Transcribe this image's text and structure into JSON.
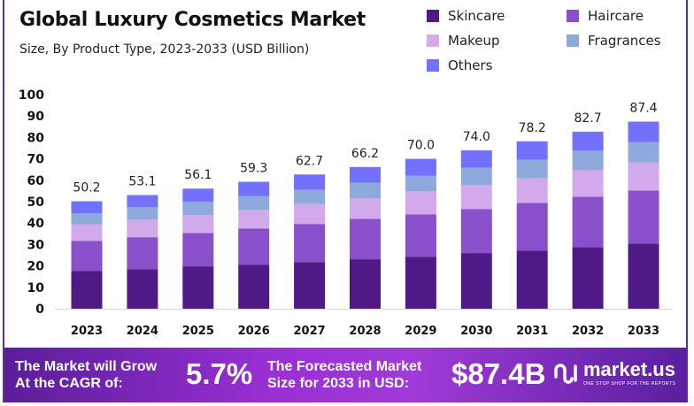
{
  "chart_data": {
    "type": "bar",
    "stacked": true,
    "title": "Global Luxury Cosmetics Market",
    "subtitle": "Size, By Product Type, 2023-2033 (USD Billion)",
    "categories": [
      "2023",
      "2024",
      "2025",
      "2026",
      "2027",
      "2028",
      "2029",
      "2030",
      "2031",
      "2032",
      "2033"
    ],
    "totals": [
      "50.2",
      "53.1",
      "56.1",
      "59.3",
      "62.7",
      "66.2",
      "70.0",
      "74.0",
      "78.2",
      "82.7",
      "87.4"
    ],
    "series": [
      {
        "name": "Skincare",
        "color": "#4f1a86",
        "values": [
          17.7,
          18.5,
          19.8,
          20.6,
          21.8,
          23.1,
          24.3,
          26.0,
          27.2,
          28.8,
          30.5
        ]
      },
      {
        "name": "Haircare",
        "color": "#8a50cc",
        "values": [
          14.0,
          14.9,
          15.6,
          16.9,
          17.8,
          18.9,
          19.8,
          20.6,
          22.2,
          23.5,
          24.7
        ]
      },
      {
        "name": "Makeup",
        "color": "#d2a9ea",
        "values": [
          7.6,
          8.2,
          8.3,
          8.6,
          9.4,
          9.5,
          10.7,
          11.1,
          11.6,
          12.4,
          13.2
        ]
      },
      {
        "name": "Fragrances",
        "color": "#8ea9dc",
        "values": [
          5.2,
          5.8,
          6.2,
          6.6,
          6.6,
          7.4,
          7.4,
          8.2,
          8.6,
          9.1,
          9.5
        ]
      },
      {
        "name": "Others",
        "color": "#7370fb",
        "values": [
          5.7,
          5.7,
          6.2,
          6.6,
          7.1,
          7.3,
          7.8,
          8.1,
          8.6,
          8.9,
          9.5
        ]
      }
    ],
    "ylim": [
      0,
      100
    ],
    "yticks": [
      "0",
      "10",
      "20",
      "30",
      "40",
      "50",
      "60",
      "70",
      "80",
      "90",
      "100"
    ],
    "grid": false,
    "legend": "top-right"
  },
  "banner": {
    "cagr_label_1": "The Market will Grow",
    "cagr_label_2": "At the CAGR of:",
    "cagr_value": "5.7%",
    "forecast_label_1": "The Forecasted Market",
    "forecast_label_2": "Size for 2033 in USD:",
    "forecast_value": "$87.4B",
    "logo_name": "market.us",
    "logo_tagline": "ONE STOP SHOP FOR THE REPORTS"
  }
}
